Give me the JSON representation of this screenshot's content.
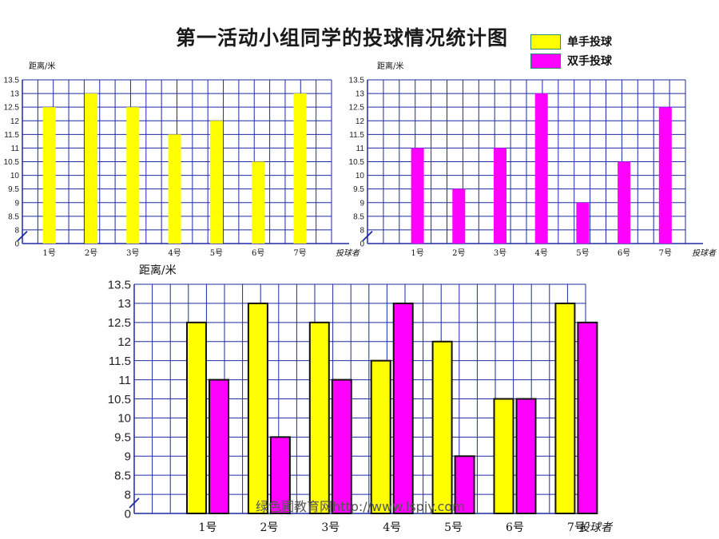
{
  "page": {
    "title": "第一活动小组同学的投球情况统计图",
    "watermark": "绿色圃教育网http://www.lspjy.com"
  },
  "legend": {
    "items": [
      {
        "label": "单手投球",
        "color": "#ffff00"
      },
      {
        "label": "双手投球",
        "color": "#ff00ff"
      }
    ]
  },
  "chart_data": [
    {
      "type": "bar",
      "categories": [
        "1号",
        "2号",
        "3号",
        "4号",
        "5号",
        "6号",
        "7号"
      ],
      "series": [
        {
          "name": "单手投球",
          "color": "#ffff00",
          "values": [
            12.5,
            13,
            12.5,
            11.5,
            12,
            10.5,
            13
          ]
        }
      ],
      "xlabel": "投球者",
      "ylabel": "距离/米",
      "ylim": [
        7.5,
        13.5
      ],
      "yticks": [
        "0",
        "8",
        "8.5",
        "9",
        "9.5",
        "10",
        "10.5",
        "11",
        "11.5",
        "12",
        "12.5",
        "13",
        "13.5"
      ],
      "axis_break": true,
      "grid": true
    },
    {
      "type": "bar",
      "categories": [
        "1号",
        "2号",
        "3号",
        "4号",
        "5号",
        "6号",
        "7号"
      ],
      "series": [
        {
          "name": "双手投球",
          "color": "#ff00ff",
          "values": [
            11,
            9.5,
            11,
            13,
            9,
            10.5,
            12.5
          ]
        }
      ],
      "xlabel": "投球者",
      "ylabel": "距离/米",
      "ylim": [
        7.5,
        13.5
      ],
      "yticks": [
        "0",
        "8",
        "8.5",
        "9",
        "9.5",
        "10",
        "10.5",
        "11",
        "11.5",
        "12",
        "12.5",
        "13",
        "13.5"
      ],
      "axis_break": true,
      "grid": true
    },
    {
      "type": "bar",
      "categories": [
        "1号",
        "2号",
        "3号",
        "4号",
        "5号",
        "6号",
        "7号"
      ],
      "series": [
        {
          "name": "单手投球",
          "color": "#ffff00",
          "values": [
            12.5,
            13,
            12.5,
            11.5,
            12,
            10.5,
            13
          ]
        },
        {
          "name": "双手投球",
          "color": "#ff00ff",
          "values": [
            11,
            9.5,
            11,
            13,
            9,
            10.5,
            12.5
          ]
        }
      ],
      "xlabel": "投球者",
      "ylabel": "距离/米",
      "ylim": [
        7.5,
        13.5
      ],
      "yticks": [
        "0",
        "8",
        "8.5",
        "9",
        "9.5",
        "10",
        "10.5",
        "11",
        "11.5",
        "12",
        "12.5",
        "13",
        "13.5"
      ],
      "axis_break": true,
      "grid": true
    }
  ]
}
